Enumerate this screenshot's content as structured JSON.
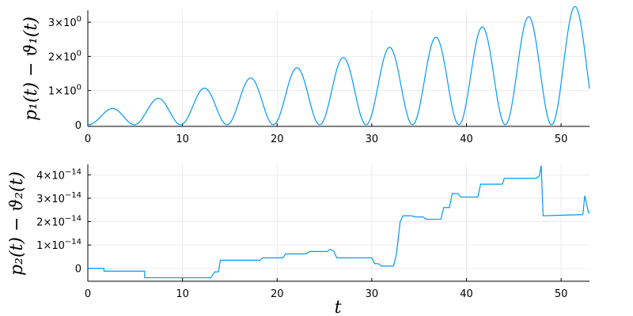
{
  "chart_data": [
    {
      "type": "line",
      "ylabel": "p₁(t) − ϑ₁(t)",
      "xlabel": "",
      "xlim": [
        0,
        53
      ],
      "ylim": [
        -0.05,
        3.35
      ],
      "x_ticks": [
        0,
        10,
        20,
        30,
        40,
        50
      ],
      "x_tick_labels": [
        "0",
        "10",
        "20",
        "30",
        "40",
        "50"
      ],
      "y_ticks": [
        0,
        1,
        2,
        3
      ],
      "y_tick_labels": [
        {
          "mantissa": "0",
          "exp": ""
        },
        {
          "mantissa": "1×10",
          "exp": "0"
        },
        {
          "mantissa": "2×10",
          "exp": "0"
        },
        {
          "mantissa": "3×10",
          "exp": "0"
        }
      ],
      "grid": true,
      "legend": "none",
      "series": [
        {
          "color": "#009AFA",
          "description": "oscillation 1 - cos(2*pi*t/4.9), amplitude growing linearly",
          "period": 4.9,
          "amp_start": 0.08,
          "amp_slope": 0.0305,
          "x_end": 53
        }
      ]
    },
    {
      "type": "line",
      "ylabel": "p₂(t) − ϑ₂(t)",
      "xlabel": "t",
      "xlim": [
        0,
        53
      ],
      "ylim": [
        -5.5e-15,
        4.45e-14
      ],
      "x_ticks": [
        0,
        10,
        20,
        30,
        40,
        50
      ],
      "x_tick_labels": [
        "0",
        "10",
        "20",
        "30",
        "40",
        "50"
      ],
      "y_ticks": [
        0,
        1e-14,
        2e-14,
        3e-14,
        4e-14
      ],
      "y_tick_labels": [
        {
          "mantissa": "0",
          "exp": ""
        },
        {
          "mantissa": "1×10",
          "exp": "−14"
        },
        {
          "mantissa": "2×10",
          "exp": "−14"
        },
        {
          "mantissa": "3×10",
          "exp": "−14"
        },
        {
          "mantissa": "4×10",
          "exp": "−14"
        }
      ],
      "grid": true,
      "legend": "none",
      "series": [
        {
          "color": "#009AFA",
          "x": [
            0,
            1.7,
            1.7,
            6,
            6,
            13,
            13.4,
            13.8,
            14,
            14.3,
            14.6,
            18.2,
            18.5,
            20.6,
            20.9,
            23,
            23.5,
            25.3,
            25.6,
            26,
            26.3,
            30,
            30.3,
            30.7,
            31,
            32.3,
            32.6,
            33,
            33.3,
            34.2,
            34.6,
            35.4,
            35.8,
            37.3,
            37.6,
            38.2,
            38.5,
            39.1,
            39.4,
            41.2,
            41.5,
            43.8,
            44,
            47.4,
            47.7,
            47.9,
            48.1,
            52.3,
            52.5,
            52.9,
            53
          ],
          "y": [
            2e-17,
            2e-17,
            -1.2e-15,
            -1.2e-15,
            -4e-15,
            -4e-15,
            -1.5e-15,
            -1.5e-15,
            3.5e-15,
            3.5e-15,
            3.5e-15,
            3.5e-15,
            4.5e-15,
            4.5e-15,
            6.2e-15,
            6.2e-15,
            7.2e-15,
            7.2e-15,
            8.2e-15,
            7.2e-15,
            4.5e-15,
            4.5e-15,
            2e-15,
            2e-15,
            1e-15,
            1e-15,
            6e-15,
            2e-14,
            2.25e-14,
            2.25e-14,
            2.2e-14,
            2.2e-14,
            2.1e-14,
            2.1e-14,
            2.6e-14,
            2.6e-14,
            3.2e-14,
            3.2e-14,
            3.05e-14,
            3.05e-14,
            3.6e-14,
            3.6e-14,
            3.85e-14,
            3.85e-14,
            3.95e-14,
            4.4e-14,
            2.25e-14,
            2.3e-14,
            3.1e-14,
            2.4e-14,
            2.35e-14
          ]
        }
      ]
    }
  ]
}
